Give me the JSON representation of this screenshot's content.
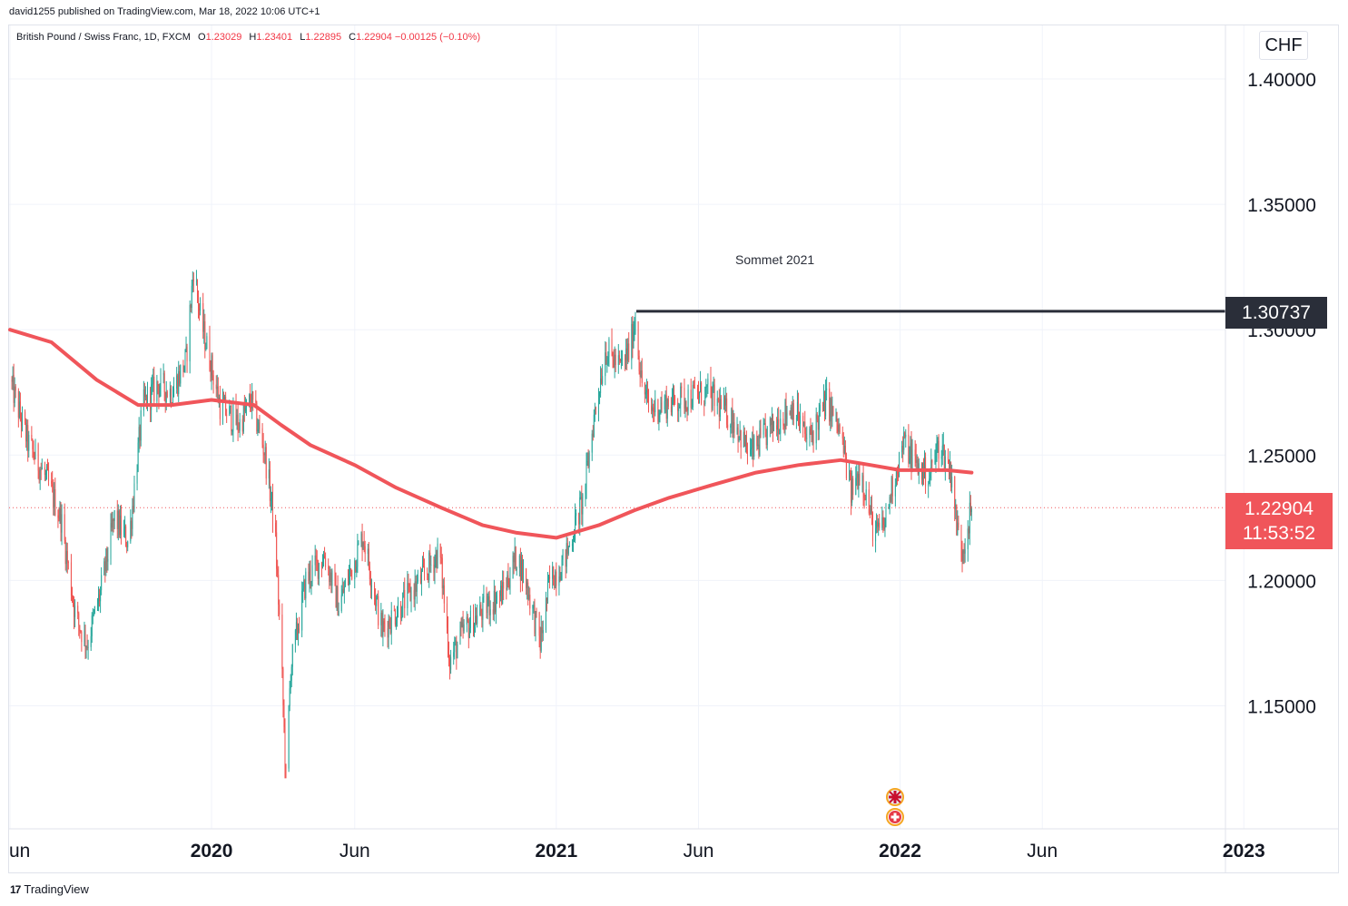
{
  "header": {
    "publisher_text": "david1255 published on TradingView.com, Mar 18, 2022 10:06 UTC+1"
  },
  "legend": {
    "symbol": "British Pound / Swiss Franc, 1D, FXCM",
    "open_label": "O",
    "open": "1.23029",
    "high_label": "H",
    "high": "1.23401",
    "low_label": "L",
    "low": "1.22895",
    "close_label": "C",
    "close": "1.22904",
    "change": "−0.00125 (−0.10%)"
  },
  "currency": "CHF",
  "annotation": "Sommet 2021",
  "price_labels": {
    "resistance": "1.30737",
    "last_price": "1.22904",
    "countdown": "11:53:52"
  },
  "footer": {
    "logo_glyph": "17",
    "brand": "TradingView"
  },
  "colors": {
    "up": "#26a69a",
    "down": "#ef5350",
    "ma": "#f0555a",
    "resistance": "#2a2e39",
    "last_price": "#f0555a",
    "grid": "#f0f3fa"
  },
  "chart_data": {
    "type": "candlestick",
    "symbol": "GBP/CHF",
    "timeframe": "1D",
    "y_axis": {
      "ticks": [
        "1.40000",
        "1.35000",
        "1.30000",
        "1.25000",
        "1.20000",
        "1.15000"
      ],
      "range": [
        1.105,
        1.41
      ]
    },
    "x_axis": {
      "ticks": [
        {
          "label": "un",
          "bold": false,
          "date": "2019-06-01"
        },
        {
          "label": "2020",
          "bold": true,
          "date": "2020-01-01"
        },
        {
          "label": "Jun",
          "bold": false,
          "date": "2020-06-01"
        },
        {
          "label": "2021",
          "bold": true,
          "date": "2021-01-01"
        },
        {
          "label": "Jun",
          "bold": false,
          "date": "2021-06-01"
        },
        {
          "label": "2022",
          "bold": true,
          "date": "2022-01-01"
        },
        {
          "label": "Jun",
          "bold": false,
          "date": "2022-06-01"
        },
        {
          "label": "2023",
          "bold": true,
          "date": "2023-01-01"
        }
      ],
      "range": [
        "2019-06-01",
        "2023-04-10"
      ]
    },
    "price_path": [
      [
        "2019-06-01",
        1.28
      ],
      [
        "2019-06-20",
        1.255
      ],
      [
        "2019-07-10",
        1.24
      ],
      [
        "2019-07-25",
        1.225
      ],
      [
        "2019-08-10",
        1.185
      ],
      [
        "2019-08-22",
        1.175
      ],
      [
        "2019-09-05",
        1.195
      ],
      [
        "2019-09-20",
        1.225
      ],
      [
        "2019-10-05",
        1.215
      ],
      [
        "2019-10-20",
        1.27
      ],
      [
        "2019-11-05",
        1.278
      ],
      [
        "2019-11-20",
        1.275
      ],
      [
        "2019-12-05",
        1.288
      ],
      [
        "2019-12-13",
        1.325
      ],
      [
        "2019-12-20",
        1.305
      ],
      [
        "2020-01-10",
        1.27
      ],
      [
        "2020-01-30",
        1.262
      ],
      [
        "2020-02-12",
        1.272
      ],
      [
        "2020-02-26",
        1.252
      ],
      [
        "2020-03-08",
        1.222
      ],
      [
        "2020-03-15",
        1.17
      ],
      [
        "2020-03-20",
        1.12
      ],
      [
        "2020-03-25",
        1.165
      ],
      [
        "2020-04-10",
        1.2
      ],
      [
        "2020-04-30",
        1.21
      ],
      [
        "2020-05-15",
        1.19
      ],
      [
        "2020-06-10",
        1.218
      ],
      [
        "2020-06-30",
        1.18
      ],
      [
        "2020-07-20",
        1.19
      ],
      [
        "2020-08-10",
        1.2
      ],
      [
        "2020-08-30",
        1.212
      ],
      [
        "2020-09-10",
        1.168
      ],
      [
        "2020-09-25",
        1.18
      ],
      [
        "2020-10-20",
        1.19
      ],
      [
        "2020-11-05",
        1.195
      ],
      [
        "2020-11-20",
        1.21
      ],
      [
        "2020-12-01",
        1.198
      ],
      [
        "2020-12-15",
        1.175
      ],
      [
        "2020-12-25",
        1.2
      ],
      [
        "2021-01-10",
        1.208
      ],
      [
        "2021-01-30",
        1.233
      ],
      [
        "2021-02-10",
        1.265
      ],
      [
        "2021-02-22",
        1.292
      ],
      [
        "2021-03-10",
        1.285
      ],
      [
        "2021-03-20",
        1.292
      ],
      [
        "2021-03-26",
        1.305
      ],
      [
        "2021-04-01",
        1.28
      ],
      [
        "2021-04-10",
        1.268
      ],
      [
        "2021-05-10",
        1.272
      ],
      [
        "2021-06-10",
        1.275
      ],
      [
        "2021-07-10",
        1.263
      ],
      [
        "2021-07-25",
        1.25
      ],
      [
        "2021-08-20",
        1.262
      ],
      [
        "2021-09-10",
        1.27
      ],
      [
        "2021-09-25",
        1.255
      ],
      [
        "2021-10-15",
        1.272
      ],
      [
        "2021-10-30",
        1.258
      ],
      [
        "2021-11-10",
        1.235
      ],
      [
        "2021-11-20",
        1.245
      ],
      [
        "2021-12-05",
        1.218
      ],
      [
        "2021-12-15",
        1.222
      ],
      [
        "2021-12-25",
        1.24
      ],
      [
        "2022-01-05",
        1.255
      ],
      [
        "2022-01-20",
        1.245
      ],
      [
        "2022-02-01",
        1.242
      ],
      [
        "2022-02-12",
        1.255
      ],
      [
        "2022-02-25",
        1.242
      ],
      [
        "2022-03-02",
        1.222
      ],
      [
        "2022-03-08",
        1.212
      ],
      [
        "2022-03-18",
        1.229
      ]
    ],
    "series": [
      {
        "name": "",
        "type": "moving-average",
        "points": [
          [
            "2019-06-01",
            1.3
          ],
          [
            "2019-07-15",
            1.295
          ],
          [
            "2019-09-01",
            1.28
          ],
          [
            "2019-10-15",
            1.27
          ],
          [
            "2019-11-20",
            1.27
          ],
          [
            "2020-01-01",
            1.272
          ],
          [
            "2020-02-15",
            1.27
          ],
          [
            "2020-03-15",
            1.262
          ],
          [
            "2020-04-15",
            1.254
          ],
          [
            "2020-06-01",
            1.246
          ],
          [
            "2020-07-15",
            1.237
          ],
          [
            "2020-09-01",
            1.229
          ],
          [
            "2020-10-15",
            1.222
          ],
          [
            "2020-11-20",
            1.219
          ],
          [
            "2021-01-01",
            1.217
          ],
          [
            "2021-02-15",
            1.222
          ],
          [
            "2021-03-25",
            1.228
          ],
          [
            "2021-05-01",
            1.233
          ],
          [
            "2021-06-15",
            1.238
          ],
          [
            "2021-08-01",
            1.243
          ],
          [
            "2021-09-15",
            1.246
          ],
          [
            "2021-10-30",
            1.248
          ],
          [
            "2021-12-01",
            1.246
          ],
          [
            "2022-01-01",
            1.244
          ],
          [
            "2022-02-01",
            1.244
          ],
          [
            "2022-02-20",
            1.244
          ],
          [
            "2022-03-18",
            1.243
          ]
        ]
      }
    ],
    "horizontal_lines": [
      {
        "value": 1.30737,
        "from": "2021-03-27"
      }
    ],
    "last_value": 1.22904,
    "annotations": [
      {
        "text": "Sommet 2021",
        "date": "2021-09-20",
        "value": 1.327
      }
    ]
  }
}
